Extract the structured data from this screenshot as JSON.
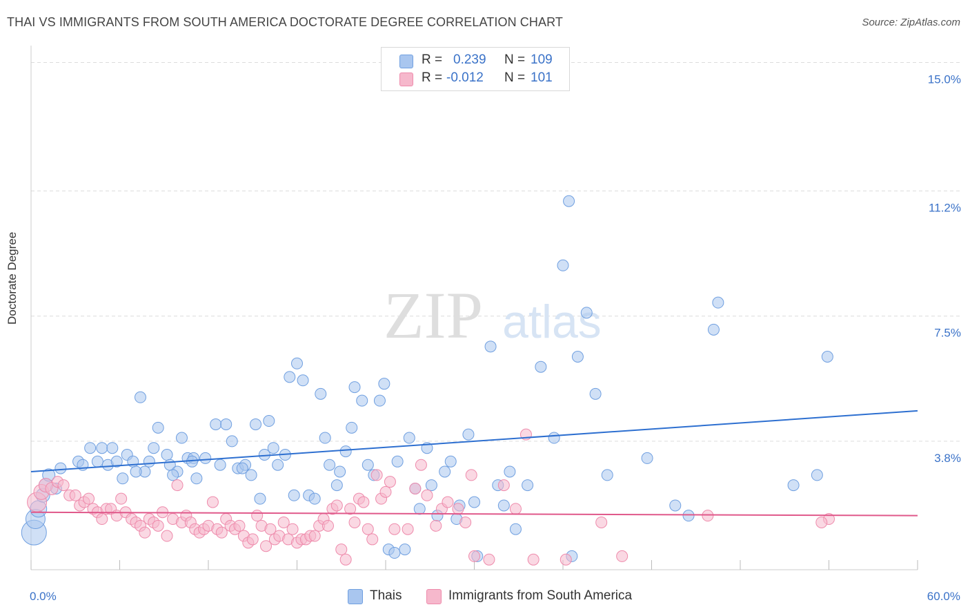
{
  "header": {
    "title": "THAI VS IMMIGRANTS FROM SOUTH AMERICA DOCTORATE DEGREE CORRELATION CHART",
    "source": "Source: ZipAtlas.com"
  },
  "watermark": {
    "zip": "ZIP",
    "atlas": "atlas"
  },
  "legend": {
    "r_label": "R =",
    "n_label": "N =",
    "thai": {
      "r": "0.239",
      "n": "109"
    },
    "immigrants": {
      "r": "-0.012",
      "n": "101"
    }
  },
  "bottom_legend": {
    "thai": "Thais",
    "immigrants": "Immigrants from South America"
  },
  "colors": {
    "thai_fill": "#a9c6ef",
    "thai_stroke": "#6f9fe0",
    "thai_line": "#2d6fd0",
    "imm_fill": "#f6b8cc",
    "imm_stroke": "#ee8aab",
    "imm_line": "#e0588a",
    "tick_label": "#3a72c8",
    "grid": "#dcdcdc"
  },
  "chart_data": {
    "type": "scatter",
    "title": "THAI VS IMMIGRANTS FROM SOUTH AMERICA DOCTORATE DEGREE CORRELATION CHART",
    "xlabel": "",
    "ylabel": "Doctorate Degree",
    "xlim": [
      0,
      60
    ],
    "ylim": [
      0,
      15.5
    ],
    "x_tick_labels": [
      "0.0%",
      "60.0%"
    ],
    "y_ticks": [
      3.8,
      7.5,
      11.2,
      15.0
    ],
    "y_tick_labels": [
      "3.8%",
      "7.5%",
      "11.2%",
      "15.0%"
    ],
    "grid": true,
    "legend_position": "top-center",
    "series": [
      {
        "name": "Thais",
        "r": 0.239,
        "n": 109,
        "trend": {
          "x": [
            0,
            60
          ],
          "y": [
            2.9,
            4.7
          ]
        },
        "points": [
          [
            0.2,
            1.1,
            18
          ],
          [
            0.3,
            1.5,
            14
          ],
          [
            0.5,
            1.8,
            12
          ],
          [
            0.8,
            2.2,
            10
          ],
          [
            1.0,
            2.5,
            10
          ],
          [
            1.2,
            2.8,
            9
          ],
          [
            1.7,
            2.4,
            8
          ],
          [
            2.0,
            3.0,
            8
          ],
          [
            3.2,
            3.2,
            8
          ],
          [
            3.5,
            3.1,
            8
          ],
          [
            4.0,
            3.6,
            8
          ],
          [
            4.5,
            3.2,
            8
          ],
          [
            4.8,
            3.6,
            8
          ],
          [
            5.2,
            3.1,
            8
          ],
          [
            5.5,
            3.6,
            8
          ],
          [
            5.8,
            3.2,
            8
          ],
          [
            6.2,
            2.7,
            8
          ],
          [
            6.5,
            3.4,
            8
          ],
          [
            6.9,
            3.2,
            8
          ],
          [
            7.4,
            5.1,
            8
          ],
          [
            7.7,
            2.9,
            8
          ],
          [
            8.0,
            3.2,
            8
          ],
          [
            8.3,
            3.6,
            8
          ],
          [
            8.6,
            4.2,
            8
          ],
          [
            9.2,
            3.4,
            8
          ],
          [
            9.4,
            3.1,
            8
          ],
          [
            9.9,
            2.9,
            8
          ],
          [
            10.2,
            3.9,
            8
          ],
          [
            10.6,
            3.3,
            8
          ],
          [
            11.0,
            3.3,
            8
          ],
          [
            11.2,
            2.7,
            8
          ],
          [
            11.8,
            3.3,
            8
          ],
          [
            12.5,
            4.3,
            8
          ],
          [
            12.8,
            3.1,
            8
          ],
          [
            13.2,
            4.3,
            8
          ],
          [
            13.6,
            3.8,
            8
          ],
          [
            14.0,
            3.0,
            8
          ],
          [
            14.5,
            3.1,
            8
          ],
          [
            14.9,
            2.8,
            8
          ],
          [
            15.2,
            4.3,
            8
          ],
          [
            15.5,
            2.1,
            8
          ],
          [
            15.8,
            3.4,
            8
          ],
          [
            16.1,
            4.4,
            8
          ],
          [
            16.4,
            3.6,
            8
          ],
          [
            16.7,
            3.1,
            8
          ],
          [
            17.2,
            3.4,
            8
          ],
          [
            17.5,
            5.7,
            8
          ],
          [
            17.8,
            2.2,
            8
          ],
          [
            18.0,
            6.1,
            8
          ],
          [
            18.4,
            5.6,
            8
          ],
          [
            18.8,
            2.2,
            8
          ],
          [
            19.2,
            2.1,
            8
          ],
          [
            19.6,
            5.2,
            8
          ],
          [
            19.9,
            3.9,
            8
          ],
          [
            20.2,
            3.1,
            8
          ],
          [
            20.7,
            2.5,
            8
          ],
          [
            20.9,
            2.9,
            8
          ],
          [
            21.3,
            3.5,
            8
          ],
          [
            21.7,
            4.2,
            8
          ],
          [
            21.9,
            5.4,
            8
          ],
          [
            22.4,
            5.0,
            8
          ],
          [
            22.8,
            3.1,
            8
          ],
          [
            23.2,
            2.8,
            8
          ],
          [
            23.6,
            5.0,
            8
          ],
          [
            23.9,
            5.5,
            8
          ],
          [
            24.2,
            0.6,
            8
          ],
          [
            24.8,
            3.2,
            8
          ],
          [
            25.3,
            0.6,
            8
          ],
          [
            25.6,
            3.9,
            8
          ],
          [
            26.0,
            2.4,
            8
          ],
          [
            26.3,
            1.8,
            8
          ],
          [
            26.8,
            3.6,
            8
          ],
          [
            27.1,
            2.5,
            8
          ],
          [
            27.5,
            1.6,
            8
          ],
          [
            28.0,
            2.9,
            8
          ],
          [
            28.4,
            3.2,
            8
          ],
          [
            29.0,
            1.9,
            8
          ],
          [
            29.6,
            4.0,
            8
          ],
          [
            30.2,
            0.4,
            8
          ],
          [
            31.1,
            6.6,
            8
          ],
          [
            31.6,
            2.5,
            8
          ],
          [
            32.0,
            1.9,
            8
          ],
          [
            32.4,
            2.9,
            8
          ],
          [
            32.8,
            1.2,
            8
          ],
          [
            33.6,
            2.5,
            8
          ],
          [
            34.5,
            6.0,
            8
          ],
          [
            35.4,
            3.9,
            8
          ],
          [
            36.0,
            9.0,
            8
          ],
          [
            36.4,
            10.9,
            8
          ],
          [
            36.6,
            0.4,
            8
          ],
          [
            37.0,
            6.3,
            8
          ],
          [
            37.6,
            7.6,
            8
          ],
          [
            38.2,
            5.2,
            8
          ],
          [
            39.0,
            2.8,
            8
          ],
          [
            41.7,
            3.3,
            8
          ],
          [
            43.6,
            1.9,
            8
          ],
          [
            44.5,
            1.6,
            8
          ],
          [
            46.2,
            7.1,
            8
          ],
          [
            46.5,
            7.9,
            8
          ],
          [
            51.6,
            2.5,
            8
          ],
          [
            53.2,
            2.8,
            8
          ],
          [
            53.9,
            6.3,
            8
          ],
          [
            24.6,
            0.5,
            8
          ],
          [
            30.0,
            2.0,
            8
          ],
          [
            14.3,
            3.0,
            8
          ],
          [
            9.6,
            2.8,
            8
          ],
          [
            10.9,
            3.2,
            8
          ],
          [
            7.1,
            2.9,
            8
          ],
          [
            28.8,
            1.5,
            8
          ]
        ]
      },
      {
        "name": "Immigrants from South America",
        "r": -0.012,
        "n": 101,
        "trend": {
          "x": [
            0,
            60
          ],
          "y": [
            1.7,
            1.6
          ]
        },
        "points": [
          [
            0.4,
            2.0,
            14
          ],
          [
            0.7,
            2.3,
            11
          ],
          [
            1.0,
            2.5,
            10
          ],
          [
            1.4,
            2.4,
            9
          ],
          [
            1.8,
            2.6,
            8
          ],
          [
            2.2,
            2.5,
            8
          ],
          [
            2.6,
            2.2,
            8
          ],
          [
            3.0,
            2.2,
            8
          ],
          [
            3.3,
            1.9,
            8
          ],
          [
            3.6,
            2.0,
            8
          ],
          [
            3.9,
            2.1,
            8
          ],
          [
            4.2,
            1.8,
            8
          ],
          [
            4.5,
            1.7,
            8
          ],
          [
            4.8,
            1.5,
            8
          ],
          [
            5.1,
            1.8,
            8
          ],
          [
            5.4,
            1.8,
            8
          ],
          [
            5.8,
            1.6,
            8
          ],
          [
            6.1,
            2.1,
            8
          ],
          [
            6.4,
            1.7,
            8
          ],
          [
            6.8,
            1.5,
            8
          ],
          [
            7.1,
            1.4,
            8
          ],
          [
            7.4,
            1.3,
            8
          ],
          [
            7.7,
            1.1,
            8
          ],
          [
            8.0,
            1.5,
            8
          ],
          [
            8.3,
            1.4,
            8
          ],
          [
            8.6,
            1.3,
            8
          ],
          [
            8.9,
            1.7,
            8
          ],
          [
            9.2,
            1.0,
            8
          ],
          [
            9.6,
            1.5,
            8
          ],
          [
            9.9,
            2.5,
            8
          ],
          [
            10.2,
            1.4,
            8
          ],
          [
            10.5,
            1.6,
            8
          ],
          [
            10.8,
            1.4,
            8
          ],
          [
            11.1,
            1.2,
            8
          ],
          [
            11.4,
            1.1,
            8
          ],
          [
            11.7,
            1.2,
            8
          ],
          [
            12.0,
            1.3,
            8
          ],
          [
            12.3,
            2.0,
            8
          ],
          [
            12.6,
            1.2,
            8
          ],
          [
            12.9,
            1.1,
            8
          ],
          [
            13.2,
            1.5,
            8
          ],
          [
            13.5,
            1.3,
            8
          ],
          [
            13.8,
            1.2,
            8
          ],
          [
            14.1,
            1.3,
            8
          ],
          [
            14.4,
            1.0,
            8
          ],
          [
            14.7,
            0.8,
            8
          ],
          [
            15.0,
            0.9,
            8
          ],
          [
            15.3,
            1.6,
            8
          ],
          [
            15.6,
            1.3,
            8
          ],
          [
            15.9,
            0.7,
            8
          ],
          [
            16.2,
            1.2,
            8
          ],
          [
            16.5,
            0.9,
            8
          ],
          [
            16.8,
            1.0,
            8
          ],
          [
            17.1,
            1.4,
            8
          ],
          [
            17.4,
            0.9,
            8
          ],
          [
            17.7,
            1.2,
            8
          ],
          [
            18.0,
            0.8,
            8
          ],
          [
            18.3,
            0.9,
            8
          ],
          [
            18.6,
            0.9,
            8
          ],
          [
            18.9,
            1.0,
            8
          ],
          [
            19.2,
            1.0,
            8
          ],
          [
            19.5,
            1.3,
            8
          ],
          [
            19.8,
            1.5,
            8
          ],
          [
            20.1,
            1.3,
            8
          ],
          [
            20.4,
            1.8,
            8
          ],
          [
            20.7,
            1.9,
            8
          ],
          [
            21.0,
            0.6,
            8
          ],
          [
            21.3,
            0.3,
            8
          ],
          [
            21.6,
            1.8,
            8
          ],
          [
            21.9,
            1.4,
            8
          ],
          [
            22.2,
            2.1,
            8
          ],
          [
            22.5,
            2.0,
            8
          ],
          [
            22.8,
            1.2,
            8
          ],
          [
            23.1,
            0.9,
            8
          ],
          [
            23.4,
            2.8,
            8
          ],
          [
            23.7,
            2.1,
            8
          ],
          [
            24.0,
            2.3,
            8
          ],
          [
            24.3,
            2.6,
            8
          ],
          [
            24.6,
            1.2,
            8
          ],
          [
            25.5,
            1.2,
            8
          ],
          [
            26.0,
            2.4,
            8
          ],
          [
            26.4,
            3.1,
            8
          ],
          [
            26.8,
            2.2,
            8
          ],
          [
            27.4,
            1.3,
            8
          ],
          [
            27.8,
            1.8,
            8
          ],
          [
            28.2,
            2.0,
            8
          ],
          [
            28.9,
            1.8,
            8
          ],
          [
            29.4,
            1.4,
            8
          ],
          [
            29.8,
            2.8,
            8
          ],
          [
            30.0,
            0.4,
            8
          ],
          [
            31.0,
            0.3,
            8
          ],
          [
            32.0,
            2.5,
            8
          ],
          [
            32.8,
            1.8,
            8
          ],
          [
            33.5,
            4.0,
            8
          ],
          [
            34.0,
            0.3,
            8
          ],
          [
            36.2,
            0.3,
            8
          ],
          [
            38.6,
            1.4,
            8
          ],
          [
            40.0,
            0.4,
            8
          ],
          [
            45.8,
            1.6,
            8
          ],
          [
            54.0,
            1.5,
            8
          ],
          [
            53.5,
            1.4,
            8
          ]
        ]
      }
    ]
  }
}
